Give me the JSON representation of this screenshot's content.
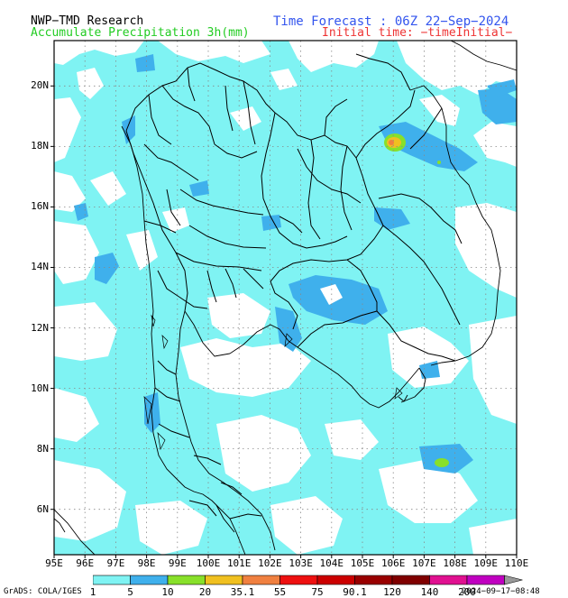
{
  "header": {
    "model": "NWP−TMD Research",
    "product": "Accumulate Precipitation 3h(mm)",
    "forecast": "Time Forecast : 06Z 22−Sep−2024",
    "initial": "Initial time: −timeInitial−"
  },
  "map": {
    "lat_labels": [
      "20N",
      "18N",
      "16N",
      "14N",
      "12N",
      "10N",
      "8N",
      "6N"
    ],
    "lon_labels": [
      "95E",
      "96E",
      "97E",
      "98E",
      "99E",
      "100E",
      "101E",
      "102E",
      "103E",
      "104E",
      "105E",
      "106E",
      "107E",
      "108E",
      "109E",
      "110E"
    ],
    "lon_range": [
      95,
      110
    ],
    "lat_range": [
      4.5,
      21.5
    ],
    "grid": "dotted",
    "colors": {
      "background": "#ffffff",
      "level1": "#7ff3f3",
      "level5": "#3fb0ec",
      "level10": "#88e02a",
      "level20": "#f0c020",
      "border": "#000000",
      "coast": "#333333"
    }
  },
  "colorbar": {
    "labels": [
      "1",
      "5",
      "10",
      "20",
      "35.1",
      "55",
      "75",
      "90.1",
      "120",
      "140",
      "200"
    ],
    "colors": [
      "#7ff3f3",
      "#3fb0ec",
      "#88e02a",
      "#f0c020",
      "#f08040",
      "#ee1010",
      "#cc0000",
      "#990000",
      "#800000",
      "#e01090",
      "#c000c0"
    ]
  },
  "footer": {
    "software": "GrADS: COLA/IGES",
    "timestamp": "2024−09−17−08:48"
  }
}
